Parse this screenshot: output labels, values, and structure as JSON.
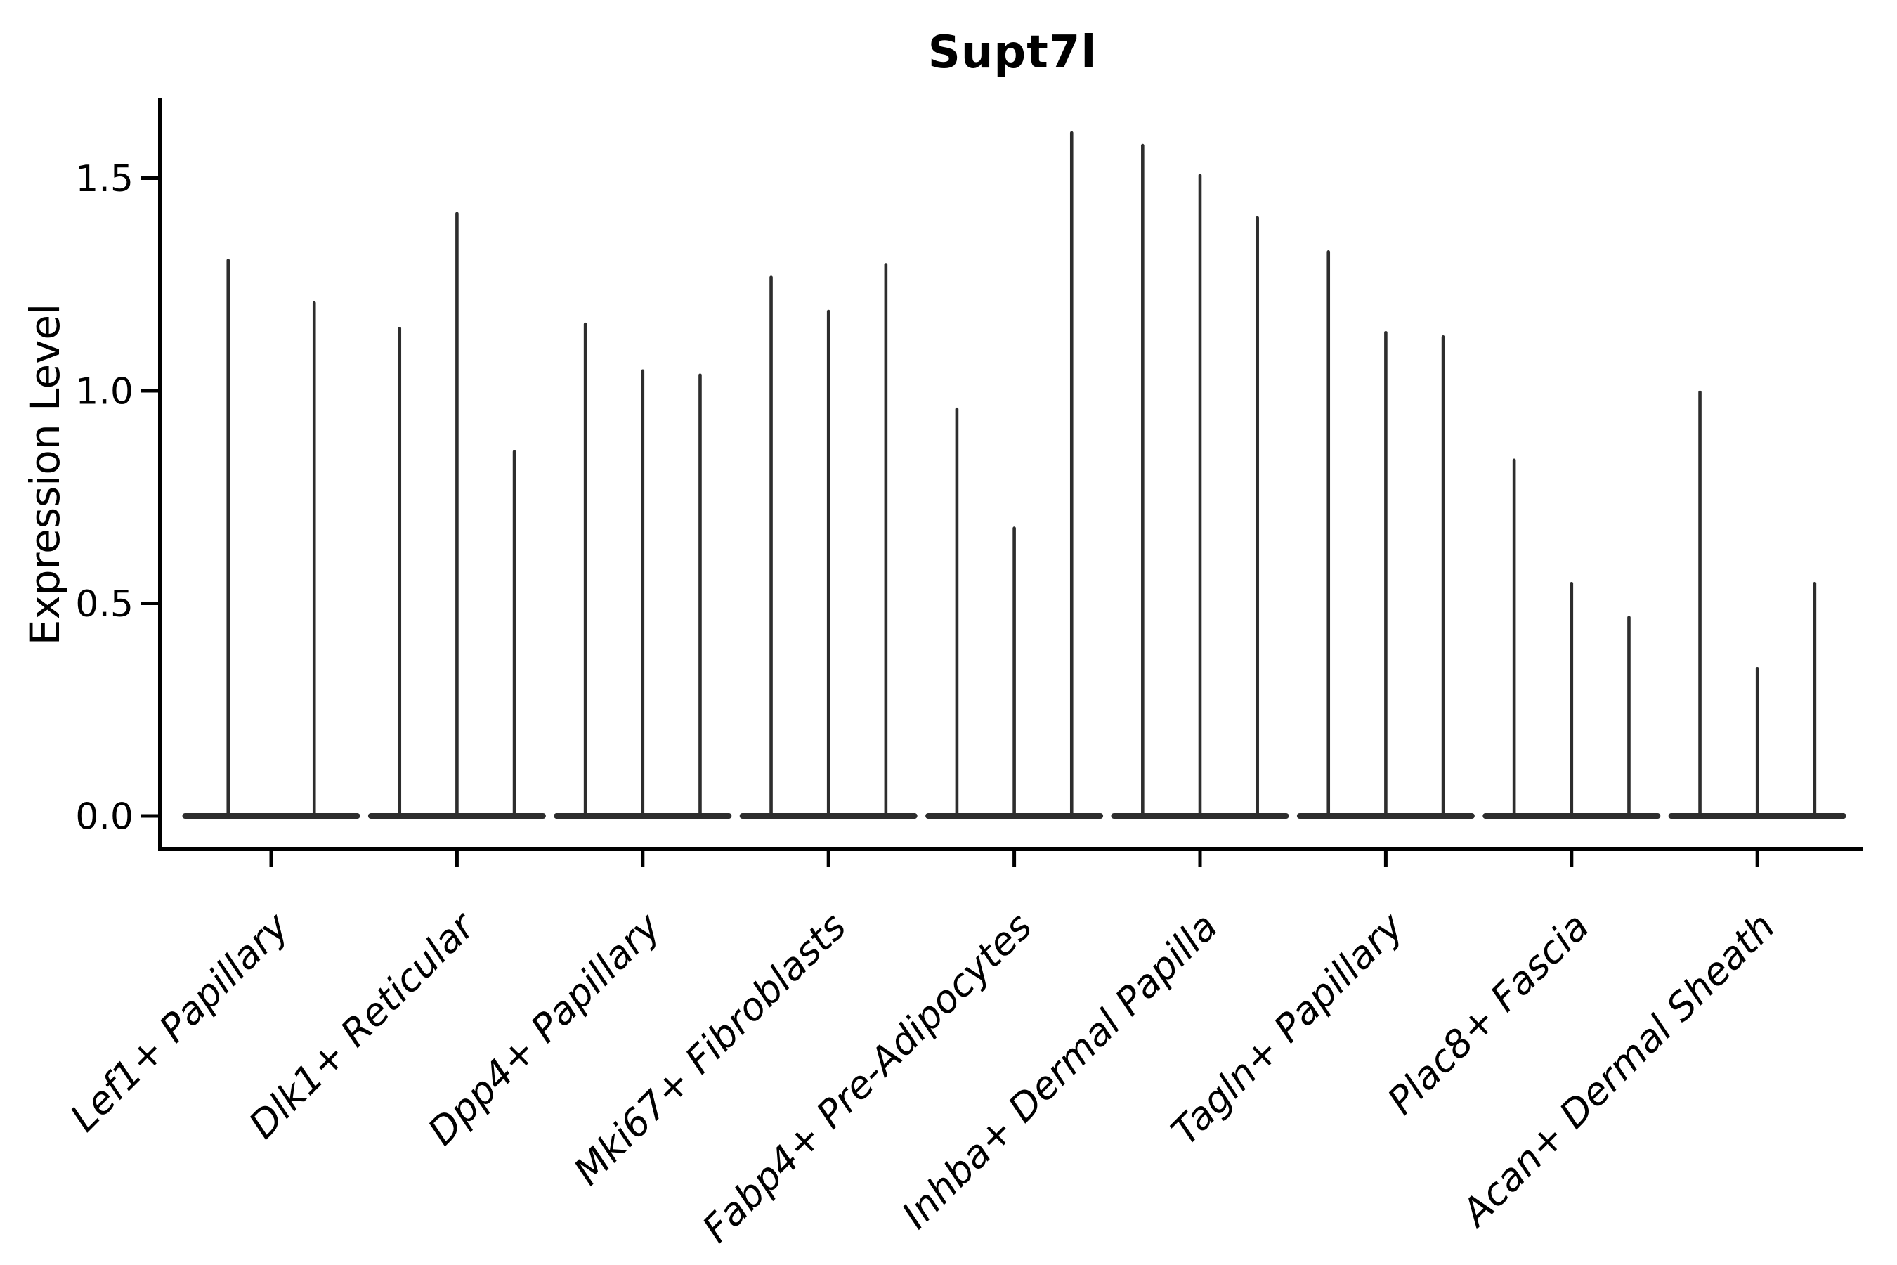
{
  "title": "Supt7l",
  "axes": {
    "ylabel": "Expression Level",
    "ytick_labels": [
      "0.0",
      "0.5",
      "1.0",
      "1.5"
    ]
  },
  "chart_data": {
    "type": "violin",
    "title": "Supt7l",
    "xlabel": "",
    "ylabel": "Expression Level",
    "ylim": [
      0.0,
      1.69
    ],
    "yticks": [
      0.0,
      0.5,
      1.0,
      1.5
    ],
    "ytick_labels": [
      "0.0",
      "0.5",
      "1.0",
      "1.5"
    ],
    "grid": false,
    "legend": "none",
    "violin_color": "#2d2d2d",
    "axis_color": "#000000",
    "note": "Needle-thin violins: nearly all density at 0 (wide flat base), thin spike up to max expression; violins_max lists the top expression value of each violin within the category group (left to right).",
    "categories": [
      "Lef1+ Papillary",
      "Dlk1+ Reticular",
      "Dpp4+ Papillary",
      "Mki67+ Fibroblasts",
      "Fabp4+ Pre-Adipocytes",
      "Inhba+ Dermal Papilla",
      "Tagln+ Papillary",
      "Plac8+ Fascia",
      "Acan+ Dermal Sheath"
    ],
    "groups": [
      {
        "category": "Lef1+ Papillary",
        "violins_max": [
          1.31,
          1.21
        ]
      },
      {
        "category": "Dlk1+ Reticular",
        "violins_max": [
          1.15,
          1.42,
          0.86
        ]
      },
      {
        "category": "Dpp4+ Papillary",
        "violins_max": [
          1.16,
          1.05,
          1.04
        ]
      },
      {
        "category": "Mki67+ Fibroblasts",
        "violins_max": [
          1.27,
          1.19,
          1.3
        ]
      },
      {
        "category": "Fabp4+ Pre-Adipocytes",
        "violins_max": [
          0.96,
          0.68,
          1.61
        ]
      },
      {
        "category": "Inhba+ Dermal Papilla",
        "violins_max": [
          1.58,
          1.51,
          1.41
        ]
      },
      {
        "category": "Tagln+ Papillary",
        "violins_max": [
          1.33,
          1.14,
          1.13
        ]
      },
      {
        "category": "Plac8+ Fascia",
        "violins_max": [
          0.84,
          0.55,
          0.47
        ]
      },
      {
        "category": "Acan+ Dermal Sheath",
        "violins_max": [
          1.0,
          0.35,
          0.55
        ]
      }
    ]
  }
}
